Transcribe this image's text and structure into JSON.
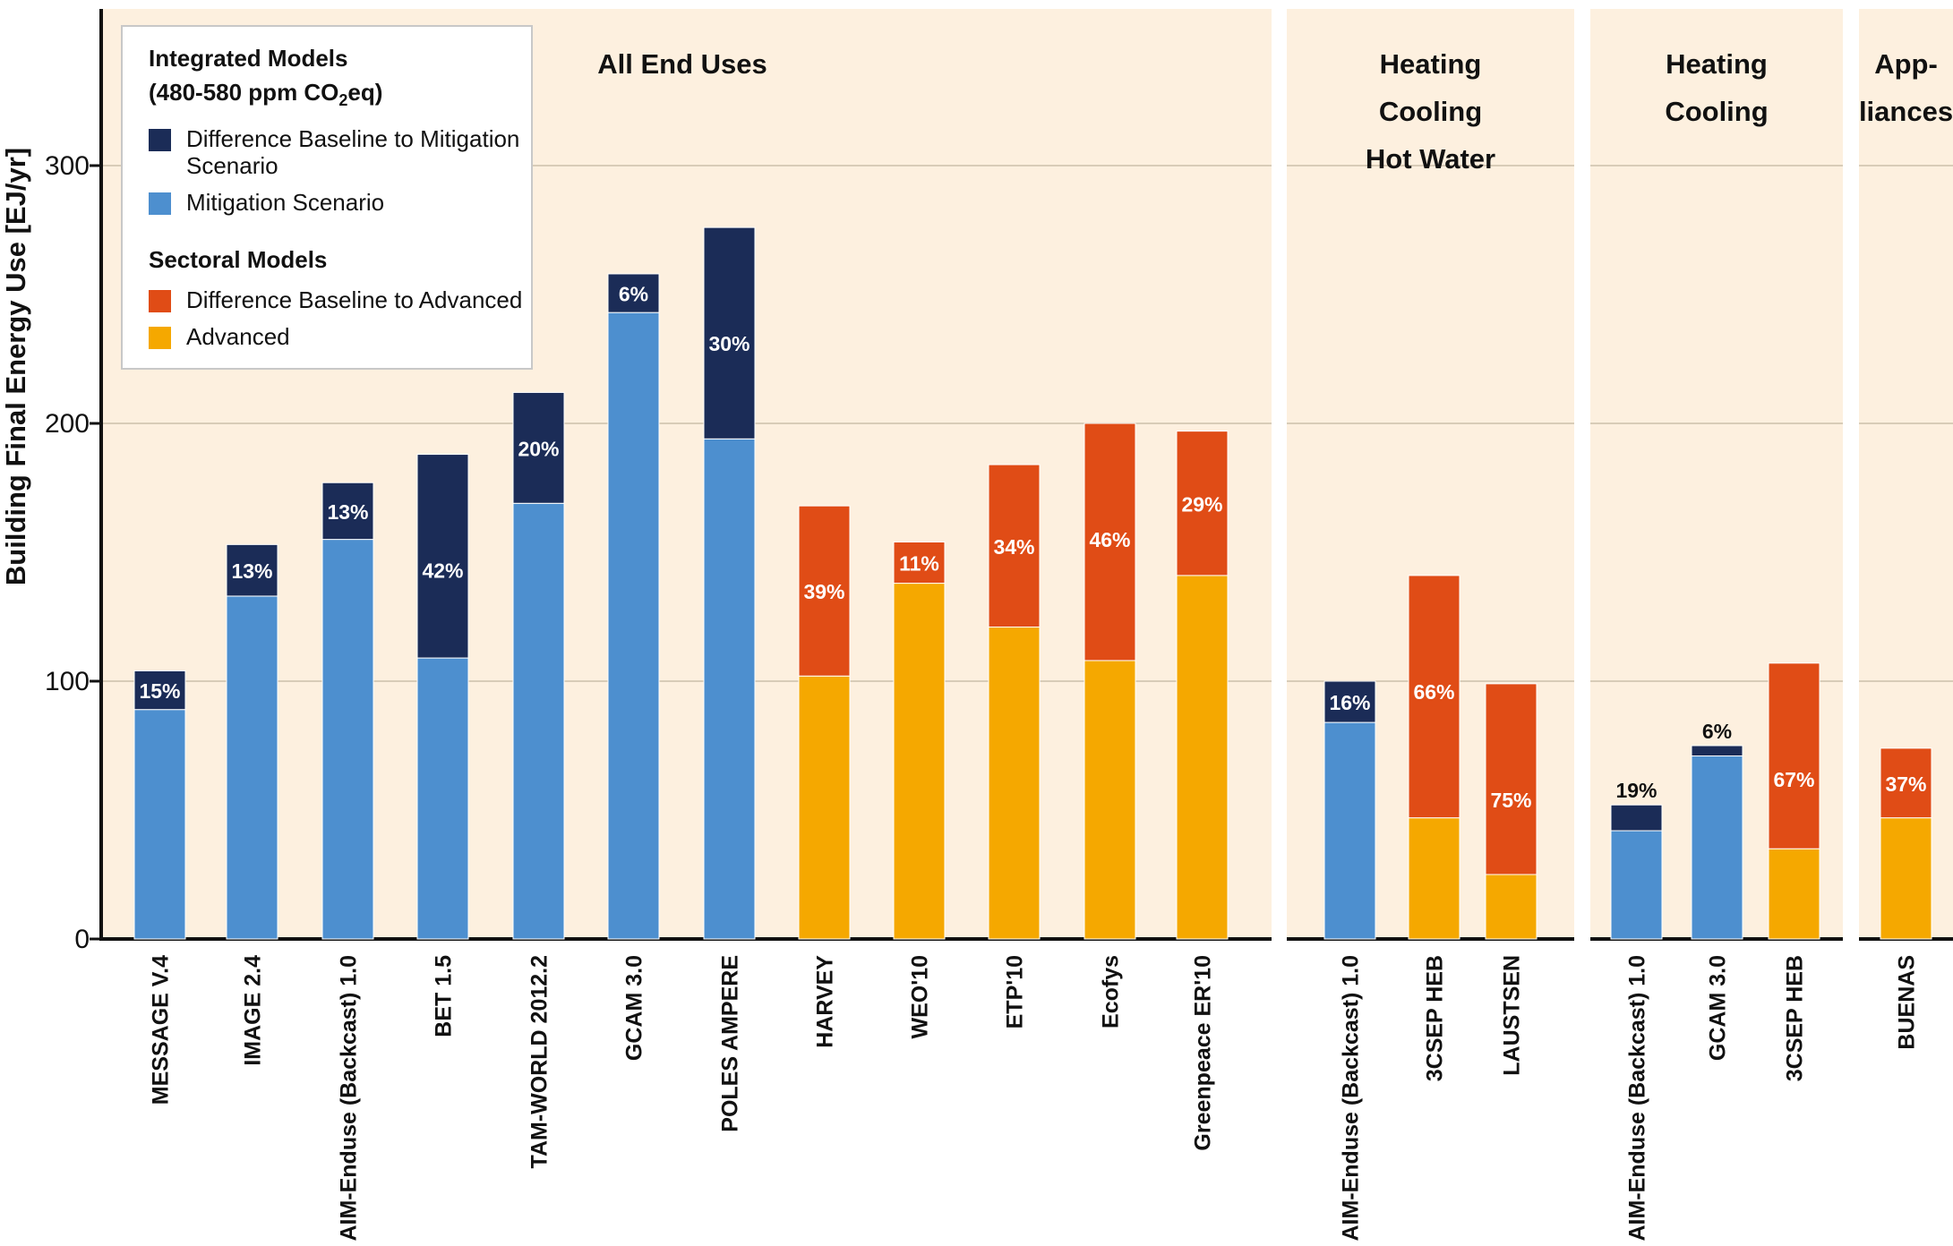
{
  "colors": {
    "mitigation_diff": "#1b2c57",
    "mitigation": "#4d8fcf",
    "advanced_diff": "#e04c16",
    "advanced": "#f5a800",
    "panel_bg": "#fdf0df"
  },
  "legend": {
    "integrated_heading": "Integrated Models",
    "integrated_subheading_pre": "(480-580 ppm CO",
    "integrated_subheading_sub": "2",
    "integrated_subheading_post": "eq)",
    "mitigation_diff_label": "Difference Baseline to Mitigation Scenario",
    "mitigation_label": "Mitigation Scenario",
    "sectoral_heading": "Sectoral Models",
    "advanced_diff_label": "Difference Baseline to Advanced",
    "advanced_label": "Advanced"
  },
  "chart_data": {
    "type": "bar",
    "stacked": true,
    "ylabel": "Building Final Energy Use [EJ/yr]",
    "ylim": [
      0,
      360
    ],
    "yticks": [
      0,
      100,
      200,
      300
    ],
    "grid": true,
    "legend_position": "top-left",
    "panels": [
      {
        "title_lines": [
          "All End Uses"
        ],
        "bars": [
          {
            "category": "MESSAGE V.4",
            "model": "integrated",
            "base": 89,
            "diff": 15,
            "label": "15%"
          },
          {
            "category": "IMAGE 2.4",
            "model": "integrated",
            "base": 133,
            "diff": 20,
            "label": "13%"
          },
          {
            "category": "AIM-Enduse (Backcast) 1.0",
            "model": "integrated",
            "base": 155,
            "diff": 22,
            "label": "13%"
          },
          {
            "category": "BET 1.5",
            "model": "integrated",
            "base": 109,
            "diff": 79,
            "label": "42%"
          },
          {
            "category": "TAM-WORLD 2012.2",
            "model": "integrated",
            "base": 169,
            "diff": 43,
            "label": "20%"
          },
          {
            "category": "GCAM 3.0",
            "model": "integrated",
            "base": 243,
            "diff": 15,
            "label": "6%"
          },
          {
            "category": "POLES AMPERE",
            "model": "integrated",
            "base": 194,
            "diff": 82,
            "label": "30%"
          },
          {
            "category": "HARVEY",
            "model": "sectoral",
            "base": 102,
            "diff": 66,
            "label": "39%"
          },
          {
            "category": "WEO'10",
            "model": "sectoral",
            "base": 138,
            "diff": 16,
            "label": "11%"
          },
          {
            "category": "ETP'10",
            "model": "sectoral",
            "base": 121,
            "diff": 63,
            "label": "34%"
          },
          {
            "category": "Ecofys",
            "model": "sectoral",
            "base": 108,
            "diff": 92,
            "label": "46%"
          },
          {
            "category": "Greenpeace ER'10",
            "model": "sectoral",
            "base": 141,
            "diff": 56,
            "label": "29%"
          }
        ]
      },
      {
        "title_lines": [
          "Heating",
          "Cooling",
          "Hot Water"
        ],
        "bars": [
          {
            "category": "AIM-Enduse (Backcast) 1.0",
            "model": "integrated",
            "base": 84,
            "diff": 16,
            "label": "16%"
          },
          {
            "category": "3CSEP HEB",
            "model": "sectoral",
            "base": 47,
            "diff": 94,
            "label": "66%"
          },
          {
            "category": "LAUSTSEN",
            "model": "sectoral",
            "base": 25,
            "diff": 74,
            "label": "75%"
          }
        ]
      },
      {
        "title_lines": [
          "Heating",
          "Cooling"
        ],
        "bars": [
          {
            "category": "AIM-Enduse (Backcast) 1.0",
            "model": "integrated",
            "base": 42,
            "diff": 10,
            "label": "19%"
          },
          {
            "category": "GCAM 3.0",
            "model": "integrated",
            "base": 71,
            "diff": 4,
            "label": "6%"
          },
          {
            "category": "3CSEP HEB",
            "model": "sectoral",
            "base": 35,
            "diff": 72,
            "label": "67%"
          }
        ]
      },
      {
        "title_lines": [
          "App-",
          "liances"
        ],
        "bars": [
          {
            "category": "BUENAS",
            "model": "sectoral",
            "base": 47,
            "diff": 27,
            "label": "37%"
          }
        ]
      }
    ]
  }
}
